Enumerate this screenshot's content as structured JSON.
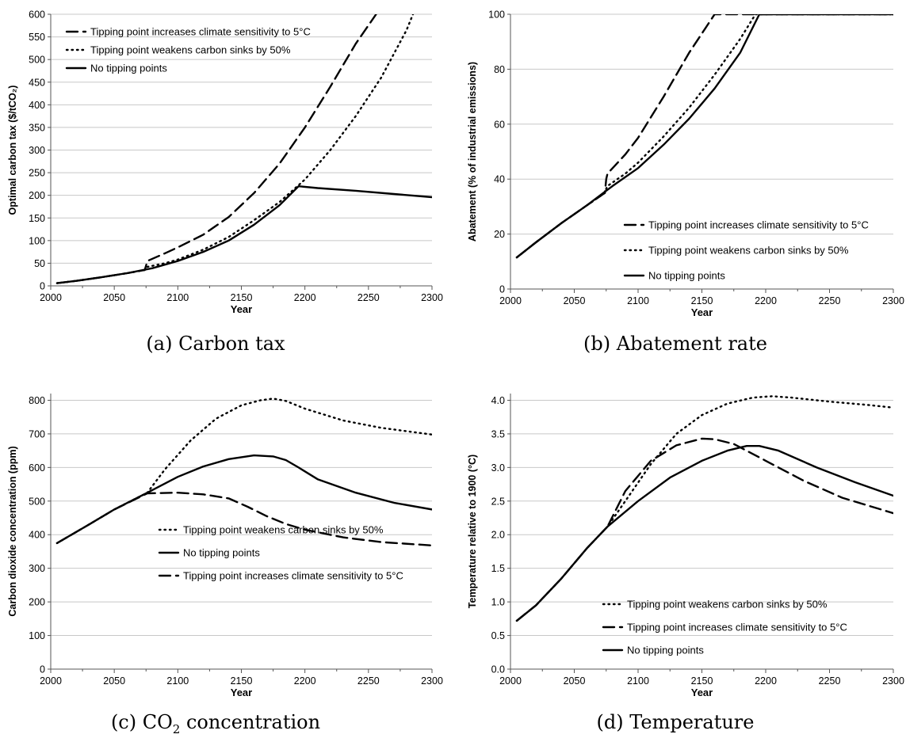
{
  "chart_data": [
    {
      "type": "line",
      "panel": "a",
      "caption": "(a) Carbon tax",
      "xlabel": "Year",
      "ylabel": "Optimal carbon tax ($/tCO₂)",
      "xlim": [
        2000,
        2300
      ],
      "ylim": [
        0,
        600
      ],
      "xticks": [
        2000,
        2050,
        2100,
        2150,
        2200,
        2250,
        2300
      ],
      "yticks": [
        0,
        50,
        100,
        150,
        200,
        250,
        300,
        350,
        400,
        450,
        500,
        550,
        600
      ],
      "grid": "horizontal",
      "legend_position": "top-left",
      "series": [
        {
          "name": "Tipping point increases climate sensitivity to 5°C",
          "style": "dashed",
          "x": [
            2005,
            2020,
            2040,
            2060,
            2074,
            2075,
            2076,
            2090,
            2100,
            2120,
            2140,
            2160,
            2180,
            2200,
            2220,
            2240,
            2256
          ],
          "y": [
            6,
            11,
            19,
            28,
            35,
            45,
            55,
            72,
            85,
            113,
            152,
            205,
            270,
            350,
            440,
            535,
            600
          ]
        },
        {
          "name": "Tipping point weakens carbon sinks by 50%",
          "style": "dotted",
          "x": [
            2005,
            2020,
            2040,
            2060,
            2074,
            2075,
            2076,
            2090,
            2100,
            2120,
            2140,
            2160,
            2180,
            2200,
            2220,
            2240,
            2260,
            2280,
            2285
          ],
          "y": [
            6,
            11,
            19,
            28,
            35,
            38,
            42,
            50,
            58,
            80,
            108,
            145,
            185,
            235,
            300,
            375,
            460,
            565,
            600
          ]
        },
        {
          "name": "No tipping points",
          "style": "solid",
          "x": [
            2005,
            2020,
            2040,
            2060,
            2080,
            2100,
            2120,
            2140,
            2160,
            2180,
            2195,
            2210,
            2240,
            2270,
            2300
          ],
          "y": [
            6,
            11,
            19,
            28,
            39,
            55,
            75,
            100,
            135,
            178,
            220,
            216,
            210,
            203,
            196
          ]
        }
      ]
    },
    {
      "type": "line",
      "panel": "b",
      "caption": "(b) Abatement rate",
      "xlabel": "Year",
      "ylabel": "Abatement (% of industrial emissions)",
      "xlim": [
        2000,
        2300
      ],
      "ylim": [
        0,
        100
      ],
      "xticks": [
        2000,
        2050,
        2100,
        2150,
        2200,
        2250,
        2300
      ],
      "yticks": [
        0,
        20,
        40,
        60,
        80,
        100
      ],
      "grid": "horizontal",
      "legend_position": "bottom-right",
      "series": [
        {
          "name": "Tipping point increases climate sensitivity to 5°C",
          "style": "dashed",
          "x": [
            2005,
            2020,
            2040,
            2060,
            2074,
            2075,
            2076,
            2090,
            2100,
            2120,
            2140,
            2160,
            2200,
            2250,
            2300
          ],
          "y": [
            11.5,
            17,
            24,
            30.5,
            35,
            40,
            42,
            49,
            55,
            70,
            86,
            100,
            100,
            100,
            100
          ]
        },
        {
          "name": "Tipping point weakens carbon sinks by 50%",
          "style": "dotted",
          "x": [
            2005,
            2020,
            2040,
            2060,
            2074,
            2075,
            2076,
            2090,
            2100,
            2120,
            2140,
            2160,
            2180,
            2192,
            2200,
            2250,
            2300
          ],
          "y": [
            11.5,
            17,
            24,
            30.5,
            35,
            36.5,
            37.5,
            42,
            46,
            55.5,
            66,
            78,
            91,
            100,
            100,
            100,
            100
          ]
        },
        {
          "name": "No tipping points",
          "style": "solid",
          "x": [
            2005,
            2020,
            2040,
            2060,
            2080,
            2100,
            2120,
            2140,
            2160,
            2180,
            2195,
            2250,
            2300
          ],
          "y": [
            11.5,
            17,
            24,
            30.5,
            37.5,
            44,
            52.5,
            62,
            73,
            86,
            100,
            100,
            100
          ]
        }
      ]
    },
    {
      "type": "line",
      "panel": "c",
      "caption": "(c) CO₂ concentration",
      "xlabel": "Year",
      "ylabel": "Carbon dioxide concentration (ppm)",
      "xlim": [
        2000,
        2300
      ],
      "ylim": [
        0,
        820
      ],
      "xticks": [
        2000,
        2050,
        2100,
        2150,
        2200,
        2250,
        2300
      ],
      "yticks": [
        0,
        100,
        200,
        300,
        400,
        500,
        600,
        700,
        800
      ],
      "grid": "horizontal",
      "legend_position": "bottom-center",
      "series": [
        {
          "name": "Tipping point weakens carbon sinks by 50%",
          "style": "dotted",
          "x": [
            2005,
            2030,
            2050,
            2076,
            2090,
            2110,
            2130,
            2150,
            2165,
            2175,
            2185,
            2200,
            2230,
            2260,
            2300
          ],
          "y": [
            375,
            430,
            475,
            525,
            595,
            680,
            745,
            785,
            800,
            805,
            798,
            775,
            740,
            718,
            698
          ]
        },
        {
          "name": "No tipping points",
          "style": "solid",
          "x": [
            2005,
            2030,
            2050,
            2076,
            2100,
            2120,
            2140,
            2160,
            2175,
            2185,
            2195,
            2210,
            2240,
            2270,
            2300
          ],
          "y": [
            375,
            430,
            475,
            525,
            572,
            603,
            625,
            636,
            633,
            622,
            600,
            565,
            525,
            495,
            475
          ]
        },
        {
          "name": "Tipping point increases climate sensitivity to 5°C",
          "style": "dashed",
          "x": [
            2005,
            2030,
            2050,
            2076,
            2100,
            2120,
            2140,
            2155,
            2170,
            2185,
            2200,
            2230,
            2260,
            2300
          ],
          "y": [
            375,
            430,
            475,
            523,
            525,
            520,
            508,
            483,
            455,
            432,
            415,
            392,
            378,
            368
          ]
        }
      ]
    },
    {
      "type": "line",
      "panel": "d",
      "caption": "(d) Temperature",
      "xlabel": "Year",
      "ylabel": "Temperature relative to 1900 (°C)",
      "xlim": [
        2000,
        2300
      ],
      "ylim": [
        0,
        4.1
      ],
      "xticks": [
        2000,
        2050,
        2100,
        2150,
        2200,
        2250,
        2300
      ],
      "yticks": [
        "0.0",
        "0.5",
        "1.0",
        "1.5",
        "2.0",
        "2.5",
        "3.0",
        "3.5",
        "4.0"
      ],
      "grid": "horizontal",
      "legend_position": "bottom-center",
      "series": [
        {
          "name": "Tipping point weakens carbon sinks by 50%",
          "style": "dotted",
          "x": [
            2005,
            2020,
            2040,
            2060,
            2076,
            2090,
            2110,
            2130,
            2150,
            2170,
            2190,
            2205,
            2220,
            2250,
            2280,
            2300
          ],
          "y": [
            0.72,
            0.95,
            1.35,
            1.8,
            2.12,
            2.5,
            3.05,
            3.5,
            3.78,
            3.95,
            4.04,
            4.06,
            4.04,
            3.98,
            3.93,
            3.89
          ]
        },
        {
          "name": "Tipping point increases climate sensitivity to 5°C",
          "style": "dashed",
          "x": [
            2005,
            2020,
            2040,
            2060,
            2076,
            2090,
            2110,
            2130,
            2150,
            2160,
            2175,
            2200,
            2230,
            2260,
            2300
          ],
          "y": [
            0.72,
            0.95,
            1.35,
            1.8,
            2.12,
            2.65,
            3.1,
            3.33,
            3.43,
            3.42,
            3.35,
            3.1,
            2.8,
            2.55,
            2.32
          ]
        },
        {
          "name": "No tipping points",
          "style": "solid",
          "x": [
            2005,
            2020,
            2040,
            2060,
            2076,
            2100,
            2125,
            2150,
            2170,
            2185,
            2195,
            2210,
            2240,
            2270,
            2300
          ],
          "y": [
            0.72,
            0.95,
            1.35,
            1.8,
            2.12,
            2.5,
            2.85,
            3.1,
            3.25,
            3.32,
            3.32,
            3.25,
            3.0,
            2.78,
            2.58
          ]
        }
      ]
    }
  ]
}
